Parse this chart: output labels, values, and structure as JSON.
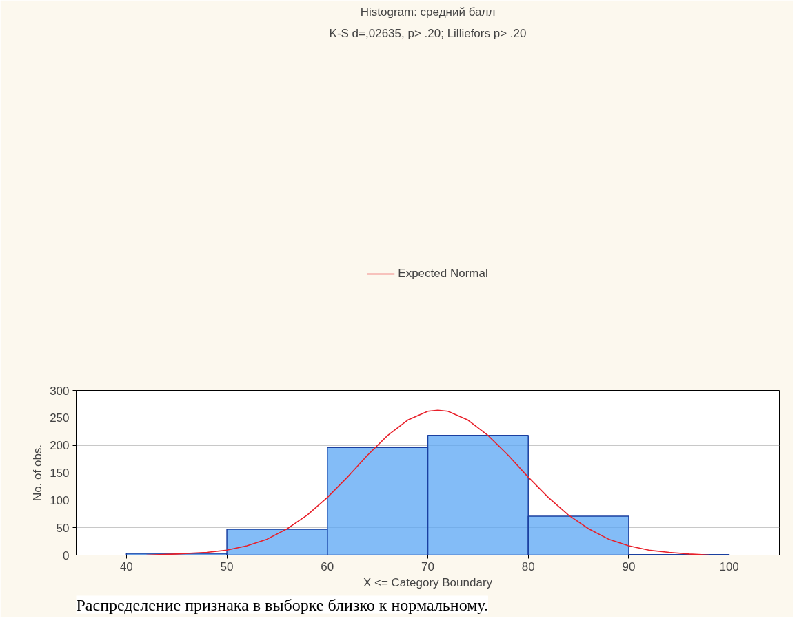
{
  "chart_data": {
    "type": "histogram",
    "title": "Histogram: средний балл",
    "subtitle": "K-S d=,02635, p> .20; Lilliefors p> .20",
    "xlabel": "X <= Category Boundary",
    "ylabel": "No. of obs.",
    "bins": [
      40,
      50,
      60,
      70,
      80,
      90,
      100
    ],
    "values": [
      3,
      47,
      196,
      218,
      71,
      1
    ],
    "color": "#5aa6f4",
    "series": [
      {
        "name": "Expected Normal",
        "type": "line",
        "color": "#e8202a",
        "x": [
          42,
          45,
          48,
          50,
          52,
          54,
          56,
          58,
          60,
          62,
          64,
          66,
          68,
          70,
          71,
          72,
          74,
          76,
          78,
          80,
          82,
          84,
          86,
          88,
          90,
          92,
          94,
          96,
          98
        ],
        "values": [
          0,
          2,
          5,
          9,
          17,
          29,
          48,
          73,
          105,
          142,
          182,
          218,
          246,
          262,
          264,
          262,
          246,
          218,
          182,
          142,
          105,
          73,
          48,
          29,
          17,
          9,
          5,
          2,
          0
        ]
      }
    ],
    "xlim": [
      35,
      105
    ],
    "xticks": [
      40,
      50,
      60,
      70,
      80,
      90,
      100
    ],
    "ylim": [
      0,
      300
    ],
    "yticks": [
      0,
      50,
      100,
      150,
      200,
      250,
      300
    ],
    "grid": "y",
    "legend": "top",
    "annotations": [
      "Распределение признака в выборке близко к нормальному."
    ]
  }
}
